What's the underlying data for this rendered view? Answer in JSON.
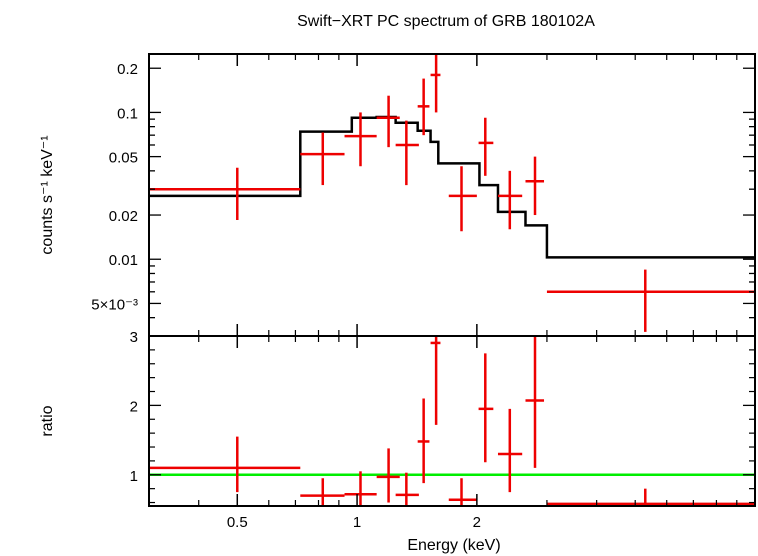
{
  "chart_data": {
    "type": "scatter",
    "title": "Swift−XRT PC spectrum of GRB 180102A",
    "xlabel": "Energy (keV)",
    "x_scale": "log",
    "xlim": [
      0.3,
      10
    ],
    "x_ticks": [
      {
        "value": 0.5,
        "label": "0.5"
      },
      {
        "value": 1,
        "label": "1"
      },
      {
        "value": 2,
        "label": "2"
      }
    ],
    "panels": [
      {
        "name": "spectrum",
        "ylabel": "counts s⁻¹ keV⁻¹",
        "y_scale": "log",
        "ylim": [
          0.003,
          0.25
        ],
        "y_ticks": [
          {
            "value": 0.2,
            "label": "0.2"
          },
          {
            "value": 0.1,
            "label": "0.1"
          },
          {
            "value": 0.05,
            "label": "0.05"
          },
          {
            "value": 0.02,
            "label": "0.02"
          },
          {
            "value": 0.01,
            "label": "0.01"
          },
          {
            "value": 0.005,
            "label": "5×10⁻³"
          }
        ],
        "data_points": [
          {
            "x": 0.5,
            "x_lo": 0.3,
            "x_hi": 0.72,
            "y": 0.03,
            "y_lo": 0.0185,
            "y_hi": 0.042
          },
          {
            "x": 0.82,
            "x_lo": 0.72,
            "x_hi": 0.93,
            "y": 0.052,
            "y_lo": 0.032,
            "y_hi": 0.073
          },
          {
            "x": 1.02,
            "x_lo": 0.93,
            "x_hi": 1.12,
            "y": 0.069,
            "y_lo": 0.043,
            "y_hi": 0.1
          },
          {
            "x": 1.2,
            "x_lo": 1.12,
            "x_hi": 1.28,
            "y": 0.092,
            "y_lo": 0.058,
            "y_hi": 0.13
          },
          {
            "x": 1.33,
            "x_lo": 1.25,
            "x_hi": 1.43,
            "y": 0.06,
            "y_lo": 0.032,
            "y_hi": 0.088
          },
          {
            "x": 1.47,
            "x_lo": 1.42,
            "x_hi": 1.52,
            "y": 0.11,
            "y_lo": 0.07,
            "y_hi": 0.17
          },
          {
            "x": 1.58,
            "x_lo": 1.53,
            "x_hi": 1.62,
            "y": 0.18,
            "y_lo": 0.1,
            "y_hi": 0.25
          },
          {
            "x": 1.83,
            "x_lo": 1.7,
            "x_hi": 2.0,
            "y": 0.027,
            "y_lo": 0.0155,
            "y_hi": 0.043
          },
          {
            "x": 2.1,
            "x_lo": 2.02,
            "x_hi": 2.2,
            "y": 0.062,
            "y_lo": 0.037,
            "y_hi": 0.092
          },
          {
            "x": 2.42,
            "x_lo": 2.26,
            "x_hi": 2.6,
            "y": 0.027,
            "y_lo": 0.016,
            "y_hi": 0.04
          },
          {
            "x": 2.8,
            "x_lo": 2.65,
            "x_hi": 2.95,
            "y": 0.034,
            "y_lo": 0.02,
            "y_hi": 0.05
          },
          {
            "x": 5.3,
            "x_lo": 3.0,
            "x_hi": 10,
            "y": 0.006,
            "y_lo": 0.0032,
            "y_hi": 0.0085
          }
        ],
        "model_steps": [
          {
            "x_lo": 0.3,
            "x_hi": 0.72,
            "y": 0.027
          },
          {
            "x_lo": 0.72,
            "x_hi": 0.97,
            "y": 0.074
          },
          {
            "x_lo": 0.97,
            "x_hi": 1.12,
            "y": 0.092
          },
          {
            "x_lo": 1.12,
            "x_hi": 1.25,
            "y": 0.093
          },
          {
            "x_lo": 1.25,
            "x_hi": 1.42,
            "y": 0.085
          },
          {
            "x_lo": 1.42,
            "x_hi": 1.53,
            "y": 0.075
          },
          {
            "x_lo": 1.53,
            "x_hi": 1.6,
            "y": 0.063
          },
          {
            "x_lo": 1.6,
            "x_hi": 2.03,
            "y": 0.045
          },
          {
            "x_lo": 2.03,
            "x_hi": 2.26,
            "y": 0.032
          },
          {
            "x_lo": 2.26,
            "x_hi": 2.65,
            "y": 0.021
          },
          {
            "x_lo": 2.65,
            "x_hi": 3.0,
            "y": 0.017
          },
          {
            "x_lo": 3.0,
            "x_hi": 10,
            "y": 0.0103
          }
        ]
      },
      {
        "name": "ratio",
        "ylabel": "ratio",
        "y_scale": "linear",
        "ylim": [
          0.55,
          3.0
        ],
        "y_ticks": [
          {
            "value": 3,
            "label": "3"
          },
          {
            "value": 2,
            "label": "2"
          },
          {
            "value": 1,
            "label": "1"
          }
        ],
        "reference_line": 1.0,
        "data_points": [
          {
            "x": 0.5,
            "x_lo": 0.3,
            "x_hi": 0.72,
            "y": 1.1,
            "y_lo": 0.75,
            "y_hi": 1.55
          },
          {
            "x": 0.82,
            "x_lo": 0.72,
            "x_hi": 0.93,
            "y": 0.7,
            "y_lo": 0.55,
            "y_hi": 0.95
          },
          {
            "x": 1.02,
            "x_lo": 0.93,
            "x_hi": 1.12,
            "y": 0.72,
            "y_lo": 0.55,
            "y_hi": 1.05
          },
          {
            "x": 1.2,
            "x_lo": 1.12,
            "x_hi": 1.28,
            "y": 0.97,
            "y_lo": 0.6,
            "y_hi": 1.38
          },
          {
            "x": 1.33,
            "x_lo": 1.25,
            "x_hi": 1.43,
            "y": 0.71,
            "y_lo": 0.55,
            "y_hi": 1.03
          },
          {
            "x": 1.47,
            "x_lo": 1.42,
            "x_hi": 1.52,
            "y": 1.48,
            "y_lo": 0.88,
            "y_hi": 2.1
          },
          {
            "x": 1.58,
            "x_lo": 1.53,
            "x_hi": 1.62,
            "y": 2.9,
            "y_lo": 1.72,
            "y_hi": 3.0
          },
          {
            "x": 1.83,
            "x_lo": 1.7,
            "x_hi": 2.0,
            "y": 0.64,
            "y_lo": 0.55,
            "y_hi": 0.95
          },
          {
            "x": 2.1,
            "x_lo": 2.02,
            "x_hi": 2.2,
            "y": 1.95,
            "y_lo": 1.18,
            "y_hi": 2.75
          },
          {
            "x": 2.42,
            "x_lo": 2.26,
            "x_hi": 2.6,
            "y": 1.3,
            "y_lo": 0.75,
            "y_hi": 1.95
          },
          {
            "x": 2.8,
            "x_lo": 2.65,
            "x_hi": 2.95,
            "y": 2.07,
            "y_lo": 1.1,
            "y_hi": 3.0
          },
          {
            "x": 5.3,
            "x_lo": 3.0,
            "x_hi": 10,
            "y": 0.58,
            "y_lo": 0.55,
            "y_hi": 0.8
          }
        ]
      }
    ],
    "colors": {
      "data": "#ee0000",
      "model": "#000000",
      "reference": "#00ee00"
    }
  }
}
